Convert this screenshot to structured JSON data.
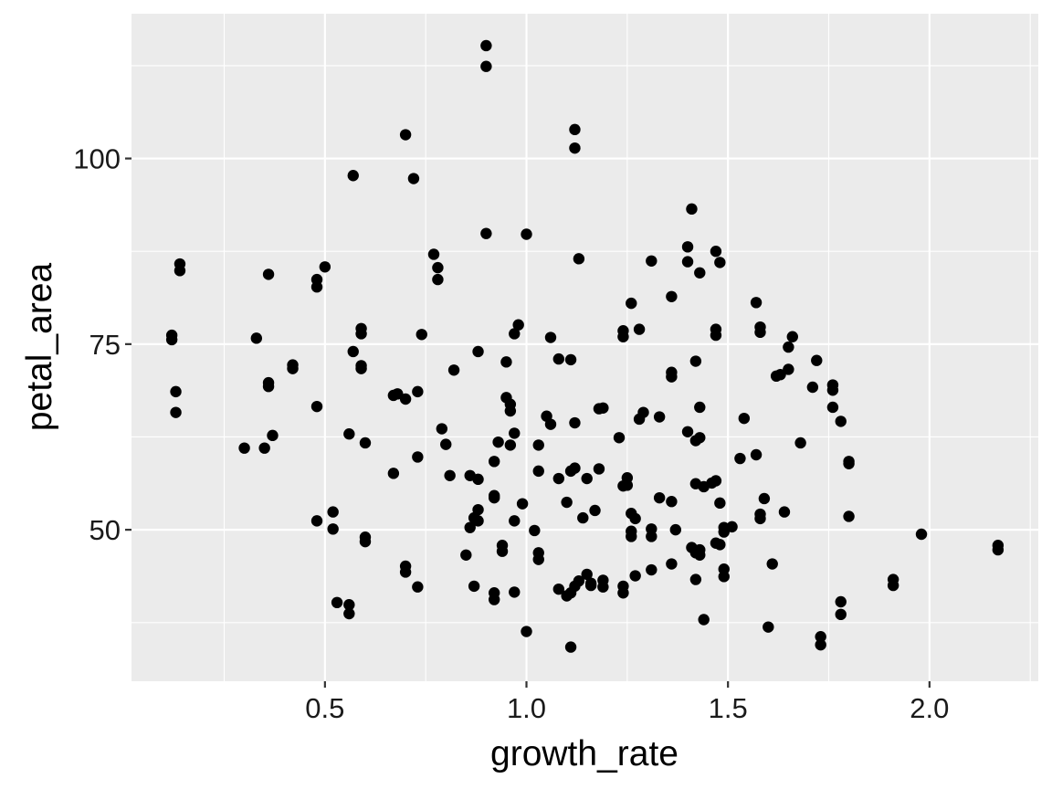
{
  "chart_data": {
    "type": "scatter",
    "title": "",
    "xlabel": "growth_rate",
    "ylabel": "petal_area",
    "xlim": [
      0.02,
      2.27
    ],
    "ylim": [
      29.6,
      119.5
    ],
    "x_ticks": [
      0.5,
      1.0,
      1.5,
      2.0
    ],
    "x_tick_labels": [
      "0.5",
      "1.0",
      "1.5",
      "2.0"
    ],
    "y_ticks": [
      50,
      75,
      100
    ],
    "y_tick_labels": [
      "50",
      "75",
      "100"
    ],
    "grid": true,
    "legend": null,
    "points": [
      [
        0.9,
        115.2
      ],
      [
        0.9,
        112.4
      ],
      [
        0.7,
        103.2
      ],
      [
        1.12,
        103.9
      ],
      [
        1.12,
        101.4
      ],
      [
        0.57,
        97.7
      ],
      [
        0.72,
        97.3
      ],
      [
        0.9,
        89.9
      ],
      [
        1.0,
        89.8
      ],
      [
        1.41,
        93.2
      ],
      [
        0.14,
        85.8
      ],
      [
        0.14,
        84.9
      ],
      [
        0.5,
        85.4
      ],
      [
        0.48,
        83.7
      ],
      [
        0.48,
        82.7
      ],
      [
        0.36,
        84.4
      ],
      [
        0.77,
        87.1
      ],
      [
        0.78,
        85.3
      ],
      [
        0.78,
        83.7
      ],
      [
        1.13,
        86.5
      ],
      [
        1.31,
        86.2
      ],
      [
        1.4,
        88.1
      ],
      [
        1.4,
        86.1
      ],
      [
        1.47,
        87.5
      ],
      [
        1.48,
        86.0
      ],
      [
        1.43,
        84.6
      ],
      [
        1.26,
        80.5
      ],
      [
        1.36,
        81.4
      ],
      [
        1.57,
        80.6
      ],
      [
        0.12,
        76.2
      ],
      [
        0.12,
        75.6
      ],
      [
        0.33,
        75.8
      ],
      [
        0.59,
        77.1
      ],
      [
        0.59,
        76.4
      ],
      [
        0.74,
        76.3
      ],
      [
        0.98,
        77.6
      ],
      [
        0.97,
        76.4
      ],
      [
        1.06,
        75.9
      ],
      [
        1.24,
        76.8
      ],
      [
        1.24,
        76.0
      ],
      [
        1.28,
        77.0
      ],
      [
        1.47,
        77.0
      ],
      [
        1.47,
        76.2
      ],
      [
        1.58,
        77.3
      ],
      [
        1.58,
        76.6
      ],
      [
        1.66,
        76.0
      ],
      [
        0.57,
        74.0
      ],
      [
        0.59,
        72.1
      ],
      [
        0.59,
        71.7
      ],
      [
        0.42,
        72.2
      ],
      [
        0.42,
        71.7
      ],
      [
        0.88,
        74.0
      ],
      [
        0.82,
        71.5
      ],
      [
        0.95,
        72.6
      ],
      [
        1.08,
        73.0
      ],
      [
        1.11,
        72.9
      ],
      [
        1.42,
        72.7
      ],
      [
        1.36,
        71.2
      ],
      [
        1.36,
        70.6
      ],
      [
        1.65,
        74.6
      ],
      [
        1.65,
        71.6
      ],
      [
        1.62,
        70.7
      ],
      [
        1.63,
        70.9
      ],
      [
        1.72,
        72.8
      ],
      [
        1.71,
        69.2
      ],
      [
        1.76,
        69.5
      ],
      [
        1.76,
        68.8
      ],
      [
        0.13,
        68.6
      ],
      [
        0.13,
        65.8
      ],
      [
        0.36,
        69.8
      ],
      [
        0.36,
        69.3
      ],
      [
        0.67,
        68.1
      ],
      [
        0.68,
        68.3
      ],
      [
        0.7,
        67.6
      ],
      [
        0.73,
        68.6
      ],
      [
        0.48,
        66.6
      ],
      [
        0.95,
        67.8
      ],
      [
        0.96,
        66.9
      ],
      [
        0.96,
        66.0
      ],
      [
        1.18,
        66.3
      ],
      [
        1.19,
        66.4
      ],
      [
        1.43,
        66.5
      ],
      [
        1.76,
        66.5
      ],
      [
        1.78,
        64.6
      ],
      [
        0.37,
        62.7
      ],
      [
        0.3,
        61.0
      ],
      [
        0.35,
        61.0
      ],
      [
        0.56,
        62.9
      ],
      [
        0.6,
        61.7
      ],
      [
        0.79,
        63.6
      ],
      [
        0.8,
        61.5
      ],
      [
        0.97,
        63.0
      ],
      [
        0.93,
        61.8
      ],
      [
        0.96,
        61.4
      ],
      [
        1.03,
        61.4
      ],
      [
        1.05,
        65.3
      ],
      [
        1.06,
        64.2
      ],
      [
        1.12,
        64.4
      ],
      [
        1.29,
        65.8
      ],
      [
        1.28,
        64.9
      ],
      [
        1.33,
        65.2
      ],
      [
        1.23,
        62.4
      ],
      [
        1.4,
        63.2
      ],
      [
        1.42,
        62.0
      ],
      [
        1.43,
        62.4
      ],
      [
        1.54,
        65.0
      ],
      [
        1.68,
        61.7
      ],
      [
        0.73,
        59.8
      ],
      [
        0.92,
        59.2
      ],
      [
        1.53,
        59.6
      ],
      [
        1.57,
        60.1
      ],
      [
        1.8,
        59.2
      ],
      [
        1.8,
        58.9
      ],
      [
        0.67,
        57.6
      ],
      [
        0.81,
        57.3
      ],
      [
        0.86,
        57.3
      ],
      [
        0.88,
        56.8
      ],
      [
        1.03,
        57.9
      ],
      [
        1.08,
        56.9
      ],
      [
        1.11,
        57.9
      ],
      [
        1.12,
        58.3
      ],
      [
        1.15,
        56.9
      ],
      [
        1.18,
        58.2
      ],
      [
        1.24,
        55.9
      ],
      [
        1.25,
        57.0
      ],
      [
        1.25,
        56.0
      ],
      [
        1.42,
        56.2
      ],
      [
        1.44,
        55.8
      ],
      [
        1.46,
        56.3
      ],
      [
        1.47,
        56.6
      ],
      [
        1.33,
        54.3
      ],
      [
        1.36,
        53.8
      ],
      [
        0.92,
        54.3
      ],
      [
        0.92,
        54.6
      ],
      [
        0.88,
        52.7
      ],
      [
        0.87,
        51.6
      ],
      [
        0.88,
        51.2
      ],
      [
        0.86,
        50.3
      ],
      [
        0.97,
        51.2
      ],
      [
        0.99,
        53.5
      ],
      [
        1.1,
        53.7
      ],
      [
        1.14,
        51.6
      ],
      [
        1.17,
        52.6
      ],
      [
        1.26,
        52.2
      ],
      [
        1.27,
        51.5
      ],
      [
        1.48,
        53.6
      ],
      [
        1.51,
        50.4
      ],
      [
        1.58,
        52.1
      ],
      [
        1.59,
        54.2
      ],
      [
        1.58,
        51.5
      ],
      [
        1.64,
        52.4
      ],
      [
        1.8,
        51.8
      ],
      [
        0.48,
        51.2
      ],
      [
        0.52,
        52.4
      ],
      [
        0.52,
        50.1
      ],
      [
        0.6,
        49.0
      ],
      [
        0.6,
        48.4
      ],
      [
        0.85,
        46.6
      ],
      [
        0.94,
        47.9
      ],
      [
        0.94,
        47.1
      ],
      [
        1.02,
        49.9
      ],
      [
        1.03,
        46.9
      ],
      [
        1.03,
        46.0
      ],
      [
        1.26,
        49.8
      ],
      [
        1.26,
        49.1
      ],
      [
        1.31,
        50.1
      ],
      [
        1.31,
        49.1
      ],
      [
        1.37,
        50.0
      ],
      [
        1.41,
        47.6
      ],
      [
        1.42,
        46.9
      ],
      [
        1.43,
        47.3
      ],
      [
        1.43,
        46.6
      ],
      [
        1.47,
        48.2
      ],
      [
        1.48,
        48.0
      ],
      [
        1.49,
        50.3
      ],
      [
        1.49,
        49.7
      ],
      [
        1.98,
        49.4
      ],
      [
        2.17,
        47.9
      ],
      [
        2.17,
        47.3
      ],
      [
        0.7,
        45.1
      ],
      [
        0.7,
        44.3
      ],
      [
        0.73,
        42.3
      ],
      [
        0.87,
        42.4
      ],
      [
        0.92,
        41.5
      ],
      [
        0.92,
        40.6
      ],
      [
        0.97,
        41.6
      ],
      [
        1.08,
        42.0
      ],
      [
        1.1,
        41.1
      ],
      [
        1.11,
        41.5
      ],
      [
        1.12,
        42.4
      ],
      [
        1.13,
        43.1
      ],
      [
        1.15,
        44.0
      ],
      [
        1.16,
        42.8
      ],
      [
        1.16,
        42.5
      ],
      [
        1.19,
        43.2
      ],
      [
        1.19,
        42.3
      ],
      [
        1.24,
        42.4
      ],
      [
        1.24,
        41.5
      ],
      [
        1.27,
        43.8
      ],
      [
        1.31,
        44.6
      ],
      [
        1.36,
        45.4
      ],
      [
        1.42,
        43.3
      ],
      [
        1.49,
        44.7
      ],
      [
        1.49,
        43.7
      ],
      [
        1.61,
        45.4
      ],
      [
        1.91,
        43.3
      ],
      [
        1.91,
        42.5
      ],
      [
        0.53,
        40.2
      ],
      [
        0.56,
        39.9
      ],
      [
        0.56,
        38.7
      ],
      [
        1.44,
        37.9
      ],
      [
        1.6,
        36.9
      ],
      [
        1.78,
        40.3
      ],
      [
        1.78,
        38.6
      ],
      [
        1.0,
        36.3
      ],
      [
        1.11,
        34.2
      ],
      [
        1.73,
        35.6
      ],
      [
        1.73,
        34.5
      ]
    ]
  }
}
